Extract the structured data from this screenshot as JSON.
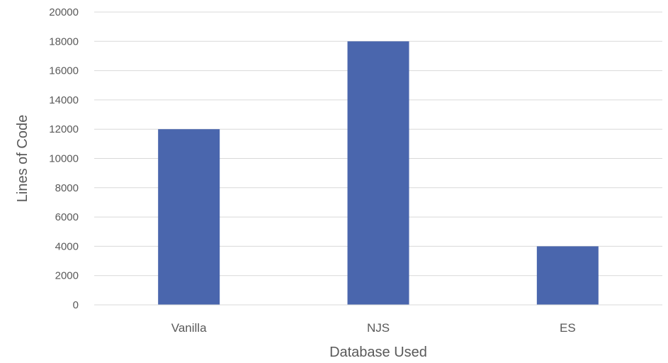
{
  "chart_data": {
    "type": "bar",
    "title": "",
    "xlabel": "Database Used",
    "ylabel": "Lines of Code",
    "categories": [
      "Vanilla",
      "NJS",
      "ES"
    ],
    "series": [
      {
        "values": [
          12000,
          18000,
          4000
        ]
      }
    ],
    "ylim": [
      0,
      20000
    ],
    "yticks": [
      0,
      2000,
      4000,
      6000,
      8000,
      10000,
      12000,
      14000,
      16000,
      18000,
      20000
    ],
    "grid": true,
    "legend": "none",
    "bar_color": "#4a66ad"
  }
}
